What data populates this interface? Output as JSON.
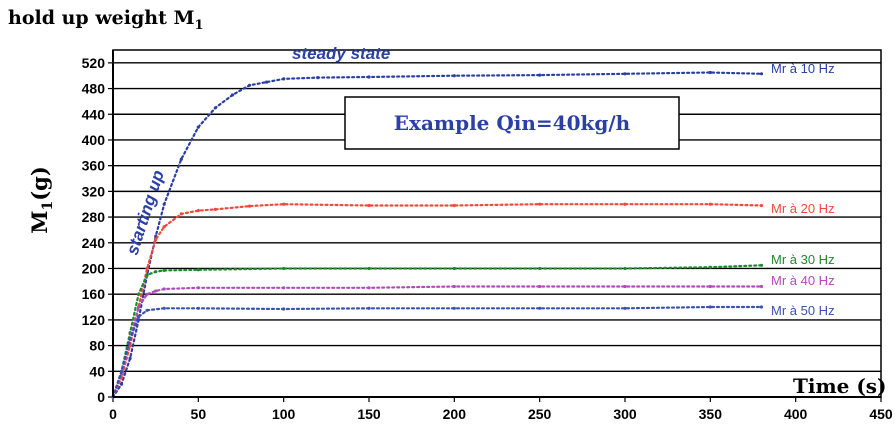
{
  "chart_data": {
    "type": "scatter",
    "title": "hold up weight M",
    "title_sub": "1",
    "xlabel": "Time (s)",
    "ylabel": "M",
    "ylabel_sub": "1",
    "ylabel_unit": "(g)",
    "xlim": [
      0,
      450
    ],
    "ylim": [
      0,
      540
    ],
    "x_ticks": [
      0,
      50,
      100,
      150,
      200,
      250,
      300,
      350,
      400,
      450
    ],
    "y_ticks": [
      0,
      40,
      80,
      120,
      160,
      200,
      240,
      280,
      320,
      360,
      400,
      440,
      480,
      520
    ],
    "grid": "horizontal",
    "series": [
      {
        "name": "Mr à 10 Hz",
        "color": "#2b3fa6",
        "x": [
          0,
          5,
          10,
          15,
          20,
          25,
          30,
          40,
          50,
          60,
          70,
          80,
          90,
          100,
          120,
          150,
          200,
          250,
          300,
          350,
          380
        ],
        "y": [
          0,
          20,
          60,
          120,
          190,
          250,
          300,
          370,
          420,
          450,
          470,
          485,
          490,
          495,
          497,
          498,
          500,
          501,
          503,
          505,
          503
        ]
      },
      {
        "name": "Mr à 20 Hz",
        "color": "#ee4a3c",
        "x": [
          0,
          5,
          10,
          15,
          20,
          25,
          30,
          40,
          50,
          60,
          80,
          100,
          150,
          200,
          250,
          300,
          350,
          380
        ],
        "y": [
          0,
          30,
          80,
          140,
          200,
          245,
          265,
          285,
          290,
          292,
          297,
          300,
          298,
          298,
          300,
          300,
          300,
          298
        ]
      },
      {
        "name": "Mr à 30 Hz",
        "color": "#1e8a2e",
        "x": [
          0,
          5,
          10,
          15,
          20,
          25,
          30,
          50,
          100,
          150,
          200,
          250,
          300,
          350,
          380
        ],
        "y": [
          0,
          40,
          100,
          160,
          190,
          195,
          197,
          198,
          200,
          200,
          200,
          200,
          200,
          202,
          205
        ]
      },
      {
        "name": "Mr à 40 Hz",
        "color": "#b04bb8",
        "x": [
          0,
          5,
          10,
          15,
          20,
          25,
          30,
          50,
          100,
          150,
          200,
          250,
          300,
          350,
          380
        ],
        "y": [
          0,
          35,
          90,
          140,
          160,
          165,
          168,
          170,
          170,
          170,
          172,
          172,
          172,
          172,
          172
        ]
      },
      {
        "name": "Mr à 50 Hz",
        "color": "#3a52b0",
        "x": [
          0,
          5,
          10,
          15,
          20,
          30,
          50,
          100,
          150,
          200,
          250,
          300,
          350,
          380
        ],
        "y": [
          0,
          40,
          90,
          125,
          135,
          138,
          138,
          137,
          138,
          138,
          138,
          138,
          140,
          140
        ]
      }
    ],
    "annotations": {
      "steady_state": "steady state",
      "starting_up": "starting up",
      "example_box": "Example Qin=40kg/h"
    }
  }
}
